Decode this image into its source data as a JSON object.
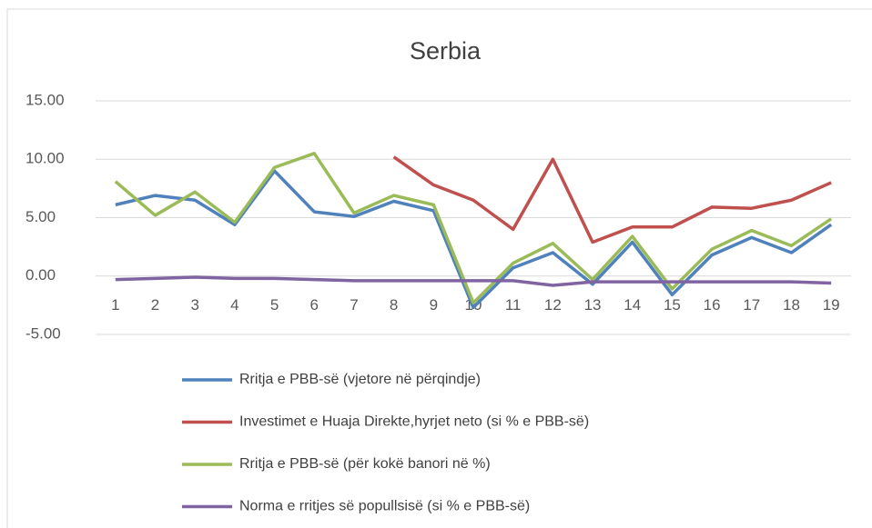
{
  "chart_data": {
    "type": "line",
    "title": "Serbia",
    "categories": [
      "1",
      "2",
      "3",
      "4",
      "5",
      "6",
      "7",
      "8",
      "9",
      "10",
      "11",
      "12",
      "13",
      "14",
      "15",
      "16",
      "17",
      "18",
      "19"
    ],
    "series": [
      {
        "name": "Rritja e PBB-së (vjetore në përqindje)",
        "color": "#4f81bd",
        "values": [
          6.1,
          6.9,
          6.5,
          4.4,
          9.0,
          5.5,
          5.1,
          6.4,
          5.6,
          -2.7,
          0.7,
          2.0,
          -0.7,
          2.9,
          -1.6,
          1.8,
          3.3,
          2.0,
          4.4
        ]
      },
      {
        "name": "Investimet e Huaja Direkte,hyrjet neto (si % e PBB-së)",
        "color": "#c0504d",
        "values": [
          null,
          null,
          null,
          null,
          null,
          null,
          null,
          10.2,
          7.8,
          6.5,
          4.0,
          10.0,
          2.9,
          4.2,
          4.2,
          5.9,
          5.8,
          6.5,
          8.0
        ]
      },
      {
        "name": "Rritja e PBB-së (për kokë banori në %)",
        "color": "#9bbb59",
        "values": [
          8.1,
          5.2,
          7.2,
          4.6,
          9.3,
          10.5,
          5.4,
          6.9,
          6.1,
          -2.3,
          1.1,
          2.8,
          -0.3,
          3.4,
          -1.1,
          2.3,
          3.9,
          2.6,
          4.9
        ]
      },
      {
        "name": "Norma e rritjes së popullsisë (si % e PBB-së)",
        "color": "#8064a2",
        "values": [
          -0.3,
          -0.2,
          -0.1,
          -0.2,
          -0.2,
          -0.3,
          -0.4,
          -0.4,
          -0.4,
          -0.4,
          -0.4,
          -0.8,
          -0.5,
          -0.5,
          -0.5,
          -0.5,
          -0.5,
          -0.5,
          -0.6
        ]
      }
    ],
    "ylim": [
      -5,
      15
    ],
    "yticks": [
      {
        "value": -5,
        "label": "-5.00"
      },
      {
        "value": 0,
        "label": "0.00"
      },
      {
        "value": 5,
        "label": "5.00"
      },
      {
        "value": 10,
        "label": "10.00"
      },
      {
        "value": 15,
        "label": "15.00"
      }
    ],
    "grid": true,
    "legend": "bottom"
  }
}
